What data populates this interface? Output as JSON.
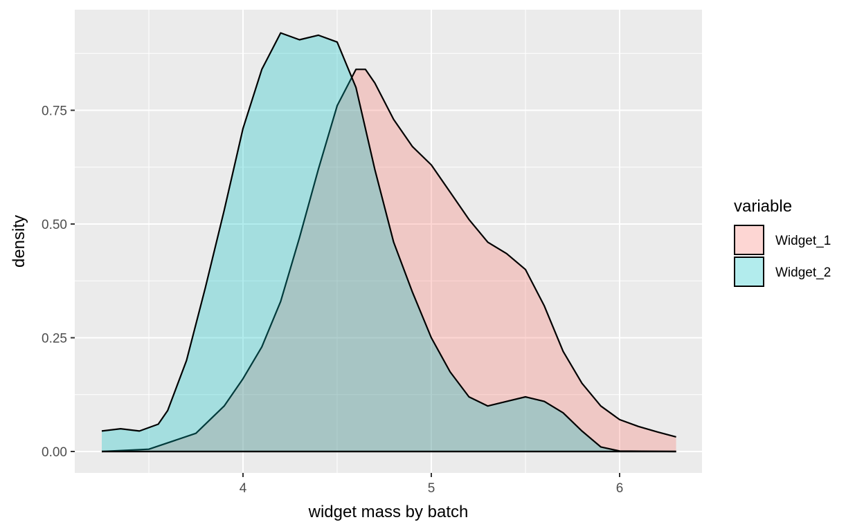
{
  "chart_data": {
    "type": "area",
    "subtype": "density",
    "title": "",
    "xlabel": "widget mass by batch",
    "ylabel": "density",
    "xlim": [
      3.25,
      6.3
    ],
    "ylim": [
      0,
      0.92
    ],
    "x_ticks": [
      4,
      5,
      6
    ],
    "x_tick_labels": [
      "4",
      "5",
      "6"
    ],
    "y_ticks": [
      0.0,
      0.25,
      0.5,
      0.75
    ],
    "y_tick_labels": [
      "0.00",
      "0.25",
      "0.50",
      "0.75"
    ],
    "grid": true,
    "legend": {
      "title": "variable",
      "position": "right",
      "entries": [
        "Widget_1",
        "Widget_2"
      ]
    },
    "series": [
      {
        "name": "Widget_1",
        "color": "#F8766D",
        "fill_opacity": 0.3,
        "points": [
          [
            3.25,
            0.0
          ],
          [
            3.5,
            0.005
          ],
          [
            3.75,
            0.04
          ],
          [
            3.9,
            0.1
          ],
          [
            4.0,
            0.16
          ],
          [
            4.1,
            0.23
          ],
          [
            4.2,
            0.33
          ],
          [
            4.3,
            0.47
          ],
          [
            4.4,
            0.62
          ],
          [
            4.5,
            0.76
          ],
          [
            4.6,
            0.84
          ],
          [
            4.65,
            0.84
          ],
          [
            4.7,
            0.81
          ],
          [
            4.8,
            0.73
          ],
          [
            4.9,
            0.67
          ],
          [
            5.0,
            0.63
          ],
          [
            5.1,
            0.57
          ],
          [
            5.2,
            0.51
          ],
          [
            5.3,
            0.46
          ],
          [
            5.4,
            0.435
          ],
          [
            5.5,
            0.4
          ],
          [
            5.6,
            0.32
          ],
          [
            5.7,
            0.22
          ],
          [
            5.8,
            0.15
          ],
          [
            5.9,
            0.1
          ],
          [
            6.0,
            0.07
          ],
          [
            6.1,
            0.055
          ],
          [
            6.2,
            0.043
          ],
          [
            6.3,
            0.032
          ]
        ]
      },
      {
        "name": "Widget_2",
        "color": "#00BFC4",
        "fill_opacity": 0.3,
        "points": [
          [
            3.25,
            0.045
          ],
          [
            3.35,
            0.05
          ],
          [
            3.45,
            0.045
          ],
          [
            3.55,
            0.06
          ],
          [
            3.6,
            0.09
          ],
          [
            3.7,
            0.2
          ],
          [
            3.8,
            0.36
          ],
          [
            3.9,
            0.53
          ],
          [
            4.0,
            0.71
          ],
          [
            4.1,
            0.84
          ],
          [
            4.2,
            0.92
          ],
          [
            4.3,
            0.905
          ],
          [
            4.4,
            0.915
          ],
          [
            4.5,
            0.9
          ],
          [
            4.6,
            0.8
          ],
          [
            4.7,
            0.62
          ],
          [
            4.8,
            0.46
          ],
          [
            4.9,
            0.35
          ],
          [
            5.0,
            0.25
          ],
          [
            5.1,
            0.175
          ],
          [
            5.2,
            0.12
          ],
          [
            5.3,
            0.1
          ],
          [
            5.4,
            0.11
          ],
          [
            5.5,
            0.12
          ],
          [
            5.6,
            0.11
          ],
          [
            5.7,
            0.085
          ],
          [
            5.8,
            0.045
          ],
          [
            5.9,
            0.01
          ],
          [
            6.0,
            0.001
          ],
          [
            6.3,
            0.0
          ]
        ]
      }
    ]
  }
}
